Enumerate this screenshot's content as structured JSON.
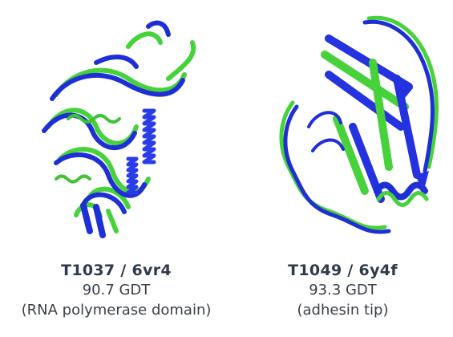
{
  "colors": {
    "prediction": "#47d13a",
    "experiment": "#1f2fd6",
    "text": "#2f3a4a"
  },
  "structures": [
    {
      "title": "T1037 / 6vr4",
      "score": "90.7 GDT",
      "description": "(RNA polymerase domain)"
    },
    {
      "title": "T1049 / 6y4f",
      "score": "93.3 GDT",
      "description": "(adhesin tip)"
    }
  ]
}
